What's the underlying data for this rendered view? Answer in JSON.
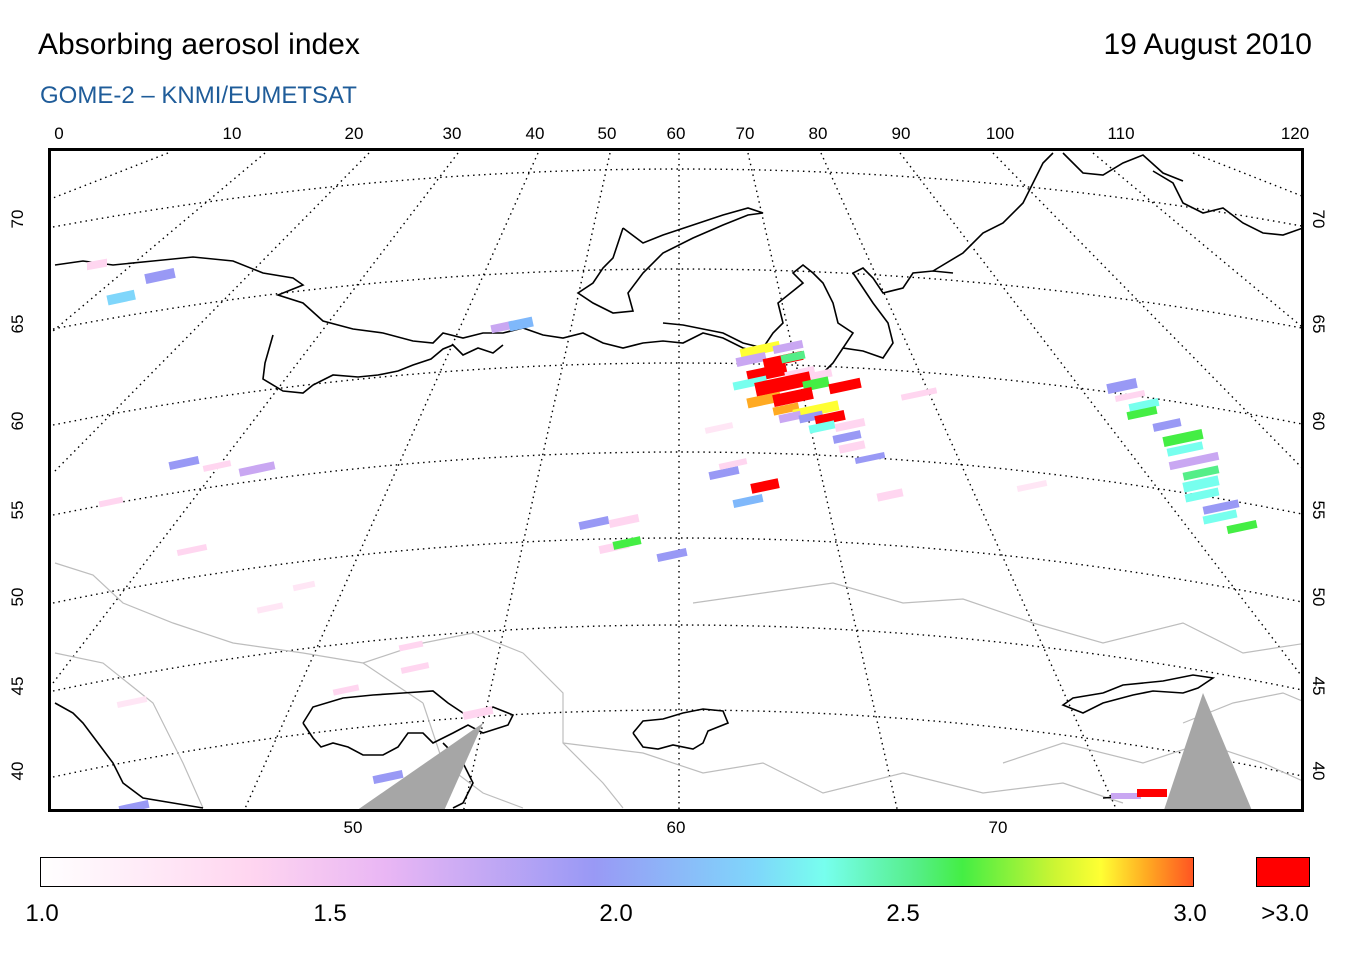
{
  "header": {
    "title": "Absorbing aerosol index",
    "date": "19 August 2010",
    "subtitle": "GOME-2  –  KNMI/EUMETSAT"
  },
  "axes": {
    "top_longitudes": [
      "0",
      "10",
      "20",
      "30",
      "40",
      "50",
      "60",
      "70",
      "80",
      "90",
      "100",
      "110",
      "120"
    ],
    "bottom_longitudes": [
      "50",
      "60",
      "70"
    ],
    "left_latitudes": [
      "70",
      "65",
      "60",
      "55",
      "50",
      "45",
      "40"
    ],
    "right_latitudes": [
      "70",
      "65",
      "60",
      "55",
      "50",
      "45",
      "40"
    ]
  },
  "colorbar": {
    "labels": [
      "1.0",
      "1.5",
      "2.0",
      "2.5",
      "3.0"
    ],
    "overflow_label": ">3.0",
    "overflow_color": "#ff0000",
    "colors": [
      "#ffffff",
      "#ffd6f0",
      "#e9b6f4",
      "#9999f5",
      "#7fd6fb",
      "#77ffee",
      "#44ee44",
      "#ffff33",
      "#ffaa22",
      "#ff5522"
    ]
  },
  "map": {
    "graticule_style": "dotted",
    "coastline_color": "#000000",
    "border_color": "#bbbbbb",
    "no_data_color": "#a6a6a6"
  }
}
